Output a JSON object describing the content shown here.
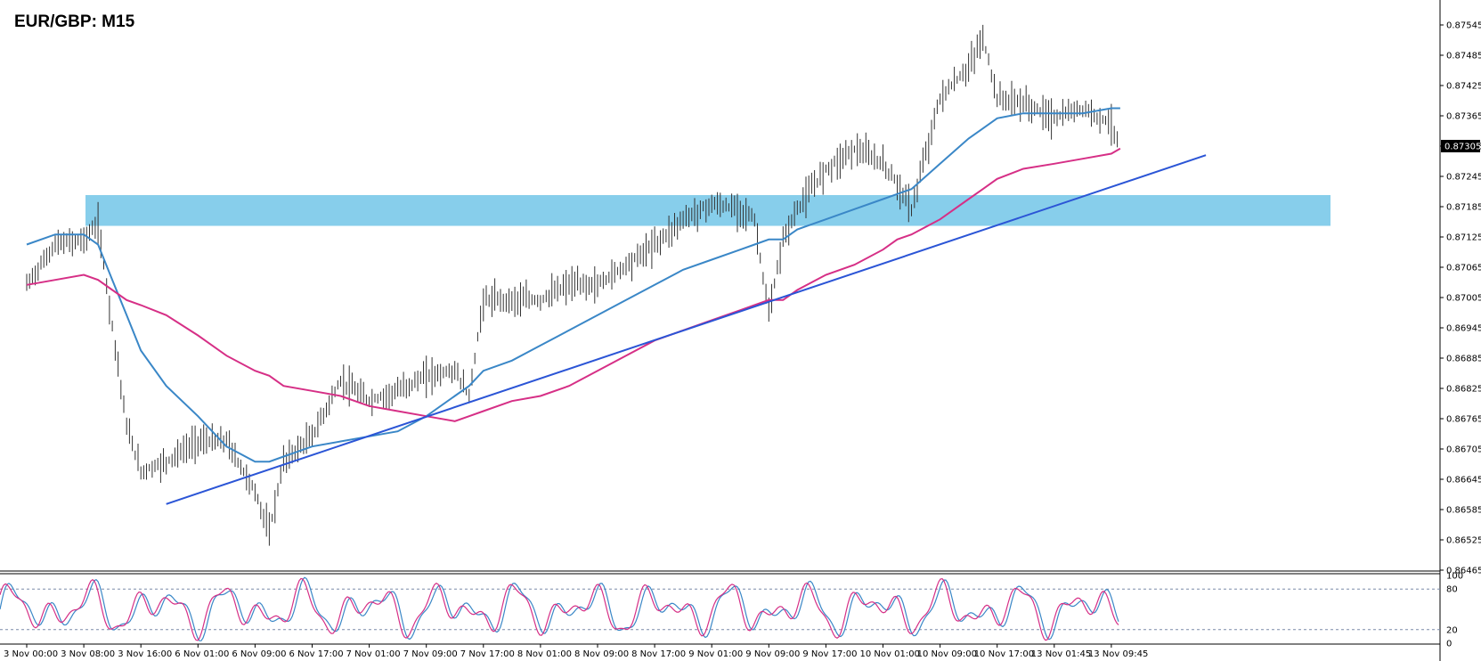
{
  "title": "EUR/GBP: M15",
  "chart_data": {
    "type": "line",
    "symbol": "EUR/GBP",
    "timeframe": "M15",
    "price_axis": {
      "ticks": [
        "0.87545",
        "0.87485",
        "0.87425",
        "0.87365",
        "0.87305",
        "0.87245",
        "0.87185",
        "0.87125",
        "0.87065",
        "0.87005",
        "0.86945",
        "0.86885",
        "0.86825",
        "0.86765",
        "0.86705",
        "0.86645",
        "0.86585",
        "0.86525",
        "0.86465"
      ],
      "range": [
        0.86465,
        0.87555
      ],
      "current_price": "0.87305"
    },
    "time_axis": {
      "ticks": [
        "3 Nov 00:00",
        "3 Nov 08:00",
        "3 Nov 16:00",
        "6 Nov 01:00",
        "6 Nov 09:00",
        "6 Nov 17:00",
        "7 Nov 01:00",
        "7 Nov 09:00",
        "7 Nov 17:00",
        "8 Nov 01:00",
        "8 Nov 09:00",
        "8 Nov 17:00",
        "9 Nov 01:00",
        "9 Nov 09:00",
        "9 Nov 17:00",
        "10 Nov 01:00",
        "10 Nov 09:00",
        "10 Nov 17:00",
        "13 Nov 01:45",
        "13 Nov 09:45"
      ]
    },
    "price_series": {
      "name": "",
      "x": [
        "3 Nov 00:00",
        "3 Nov 04:00",
        "3 Nov 08:00",
        "3 Nov 10:00",
        "3 Nov 12:00",
        "3 Nov 14:00",
        "3 Nov 16:00",
        "3 Nov 20:00",
        "6 Nov 01:00",
        "6 Nov 05:00",
        "6 Nov 09:00",
        "6 Nov 11:00",
        "6 Nov 13:00",
        "6 Nov 17:00",
        "6 Nov 21:00",
        "7 Nov 01:00",
        "7 Nov 05:00",
        "7 Nov 09:00",
        "7 Nov 13:00",
        "7 Nov 15:00",
        "7 Nov 17:00",
        "7 Nov 21:00",
        "8 Nov 01:00",
        "8 Nov 05:00",
        "8 Nov 09:00",
        "8 Nov 13:00",
        "8 Nov 17:00",
        "8 Nov 21:00",
        "9 Nov 01:00",
        "9 Nov 05:00",
        "9 Nov 07:00",
        "9 Nov 09:00",
        "9 Nov 11:00",
        "9 Nov 13:00",
        "9 Nov 17:00",
        "9 Nov 21:00",
        "10 Nov 01:00",
        "10 Nov 03:00",
        "10 Nov 05:00",
        "10 Nov 09:00",
        "10 Nov 13:00",
        "10 Nov 15:00",
        "10 Nov 17:00",
        "10 Nov 21:00",
        "13 Nov 01:45",
        "13 Nov 05:45",
        "13 Nov 09:45",
        "13 Nov 11:00"
      ],
      "y": [
        0.8703,
        0.8711,
        0.8712,
        0.8715,
        0.8695,
        0.8675,
        0.8666,
        0.8668,
        0.8672,
        0.8672,
        0.8662,
        0.8654,
        0.8668,
        0.8673,
        0.8684,
        0.868,
        0.8682,
        0.8685,
        0.8686,
        0.8681,
        0.87,
        0.87,
        0.87,
        0.8703,
        0.8703,
        0.8707,
        0.8711,
        0.8716,
        0.8719,
        0.8718,
        0.8716,
        0.8697,
        0.8712,
        0.8718,
        0.8726,
        0.873,
        0.8727,
        0.8723,
        0.8718,
        0.874,
        0.8746,
        0.8752,
        0.874,
        0.8739,
        0.8736,
        0.8738,
        0.8735,
        0.873
      ]
    },
    "moving_averages": [
      {
        "name": "",
        "color": "#3a87c7",
        "y": [
          0.8711,
          0.8713,
          0.8713,
          0.8711,
          0.8704,
          0.8697,
          0.869,
          0.8683,
          0.8677,
          0.8671,
          0.8668,
          0.8668,
          0.8669,
          0.8671,
          0.8672,
          0.8673,
          0.8674,
          0.8677,
          0.8681,
          0.8683,
          0.8686,
          0.8688,
          0.8691,
          0.8694,
          0.8697,
          0.87,
          0.8703,
          0.8706,
          0.8708,
          0.871,
          0.8711,
          0.8712,
          0.8712,
          0.8714,
          0.8716,
          0.8718,
          0.872,
          0.8721,
          0.8722,
          0.8727,
          0.8732,
          0.8734,
          0.8736,
          0.8737,
          0.8737,
          0.8737,
          0.8738,
          0.8738
        ]
      },
      {
        "name": "",
        "color": "#d62f86",
        "y": [
          0.8703,
          0.8704,
          0.8705,
          0.8704,
          0.8702,
          0.87,
          0.8699,
          0.8697,
          0.8693,
          0.8689,
          0.8686,
          0.8685,
          0.8683,
          0.8682,
          0.8681,
          0.8679,
          0.8678,
          0.8677,
          0.8676,
          0.8677,
          0.8678,
          0.868,
          0.8681,
          0.8683,
          0.8686,
          0.8689,
          0.8692,
          0.8694,
          0.8696,
          0.8698,
          0.8699,
          0.87,
          0.87,
          0.8702,
          0.8705,
          0.8707,
          0.871,
          0.8712,
          0.8713,
          0.8716,
          0.872,
          0.8722,
          0.8724,
          0.8726,
          0.8727,
          0.8728,
          0.8729,
          0.873
        ]
      }
    ],
    "support_zone": {
      "from": 0.87147,
      "to": 0.87208,
      "color": "#87ceeb"
    },
    "trendlines": [
      {
        "color": "#2b55d6",
        "start": {
          "x": "3 Nov 20:00",
          "y": 0.86596
        },
        "end": {
          "x": "13 Nov 23:00",
          "y": 0.87287
        }
      }
    ],
    "oscillator": {
      "ticks": [
        "100",
        "80",
        "20",
        "0"
      ],
      "levels": [
        80,
        20
      ],
      "range": [
        0,
        100
      ],
      "series": [
        {
          "name": "",
          "color": "#3a87c7"
        },
        {
          "name": "",
          "color": "#d62f86"
        }
      ]
    }
  }
}
